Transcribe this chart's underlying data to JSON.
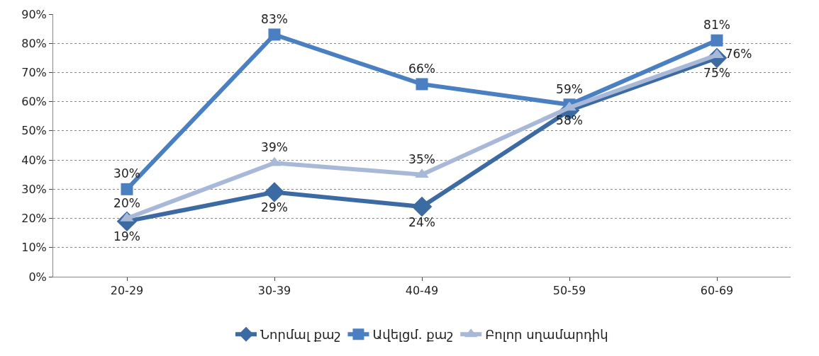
{
  "chart_data": {
    "type": "line",
    "categories": [
      "20-29",
      "30-39",
      "40-49",
      "50-59",
      "60-69"
    ],
    "series": [
      {
        "name": "Նորմալ քաշ",
        "color": "#3c6aa3",
        "marker": "diamond",
        "values": [
          19,
          29,
          24,
          57,
          75
        ],
        "value_labels": [
          "19%",
          "29%",
          "24%",
          null,
          "75%"
        ]
      },
      {
        "name": "Ավելցմ. քաշ",
        "color": "#4a7fc1",
        "marker": "square",
        "values": [
          30,
          83,
          66,
          59,
          81
        ],
        "value_labels": [
          "30%",
          "83%",
          "66%",
          "59%",
          "81%"
        ]
      },
      {
        "name": "Բոլոր սղամարդիկ",
        "color": "#a7b8d8",
        "marker": "triangle",
        "values": [
          20,
          39,
          35,
          58,
          76
        ],
        "value_labels": [
          "20%",
          "39%",
          "35%",
          "58%",
          "76%"
        ]
      }
    ],
    "ylim": [
      0,
      90
    ],
    "yticks": [
      {
        "value": 0,
        "label": "0%"
      },
      {
        "value": 10,
        "label": "10%"
      },
      {
        "value": 20,
        "label": "20%"
      },
      {
        "value": 30,
        "label": "30%"
      },
      {
        "value": 40,
        "label": "40%"
      },
      {
        "value": 50,
        "label": "50%"
      },
      {
        "value": 60,
        "label": "60%"
      },
      {
        "value": 70,
        "label": "70%"
      },
      {
        "value": 80,
        "label": "80%"
      },
      {
        "value": 90,
        "label": "90%"
      }
    ],
    "grid": "y",
    "legend": "bottom",
    "line_style": "solid"
  }
}
